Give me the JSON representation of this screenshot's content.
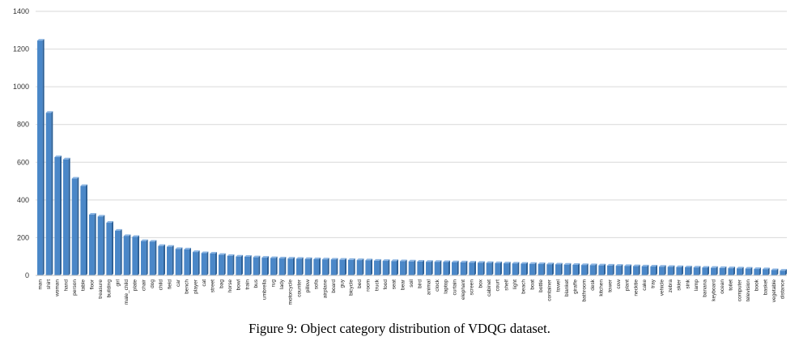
{
  "caption": "Figure 9: Object category distribution of VDQG dataset.",
  "colors": {
    "bar_fill": "#4a87c8",
    "bar_side": "#2c5f95",
    "bar_top": "#8db6e3",
    "grid": "#d9d9d9",
    "axis": "#bfbfbf"
  },
  "chart_data": {
    "type": "bar",
    "title": "",
    "xlabel": "",
    "ylabel": "",
    "ylim": [
      0,
      1400
    ],
    "yticks": [
      0,
      200,
      400,
      600,
      800,
      1000,
      1200,
      1400
    ],
    "grid": true,
    "categories": [
      "man",
      "shirt",
      "woman",
      "hand",
      "person",
      "table",
      "floor",
      "treasure",
      "building",
      "girl",
      "male_child",
      "plate",
      "chair",
      "dog",
      "child",
      "field",
      "car",
      "bench",
      "player",
      "cat",
      "street",
      "bag",
      "horse",
      "bowl",
      "train",
      "bus",
      "umbrella",
      "rug",
      "lady",
      "motorcycle",
      "counter",
      "pillow",
      "sofa",
      "airplane",
      "board",
      "guy",
      "bicycle",
      "bed",
      "room",
      "truck",
      "food",
      "seat",
      "bear",
      "soil",
      "bird",
      "animal",
      "clock",
      "laptop",
      "curtain",
      "elephant",
      "screen",
      "box",
      "cabinet",
      "court",
      "shelf",
      "light",
      "beach",
      "boat",
      "bottle",
      "container",
      "towel",
      "blanket",
      "giraffe",
      "bathroom",
      "desk",
      "kitchen",
      "tower",
      "cow",
      "plant",
      "necktie",
      "cake",
      "tray",
      "vehicle",
      "zebra",
      "skier",
      "sink",
      "lamp",
      "banana",
      "keyboard",
      "ocean",
      "toilet",
      "computer",
      "television",
      "book",
      "basket",
      "vegetable",
      "distance"
    ],
    "values": [
      1245,
      862,
      627,
      615,
      513,
      474,
      322,
      312,
      279,
      237,
      209,
      204,
      182,
      179,
      156,
      152,
      140,
      138,
      124,
      118,
      116,
      109,
      103,
      100,
      99,
      96,
      94,
      92,
      90,
      89,
      88,
      87,
      86,
      85,
      84,
      83,
      82,
      81,
      80,
      78,
      77,
      76,
      75,
      74,
      73,
      72,
      72,
      71,
      70,
      69,
      68,
      67,
      66,
      65,
      64,
      63,
      62,
      61,
      60,
      59,
      58,
      57,
      56,
      55,
      54,
      53,
      52,
      51,
      50,
      49,
      48,
      47,
      46,
      45,
      44,
      43,
      42,
      41,
      40,
      39,
      38,
      37,
      36,
      34,
      33,
      28,
      25
    ]
  }
}
